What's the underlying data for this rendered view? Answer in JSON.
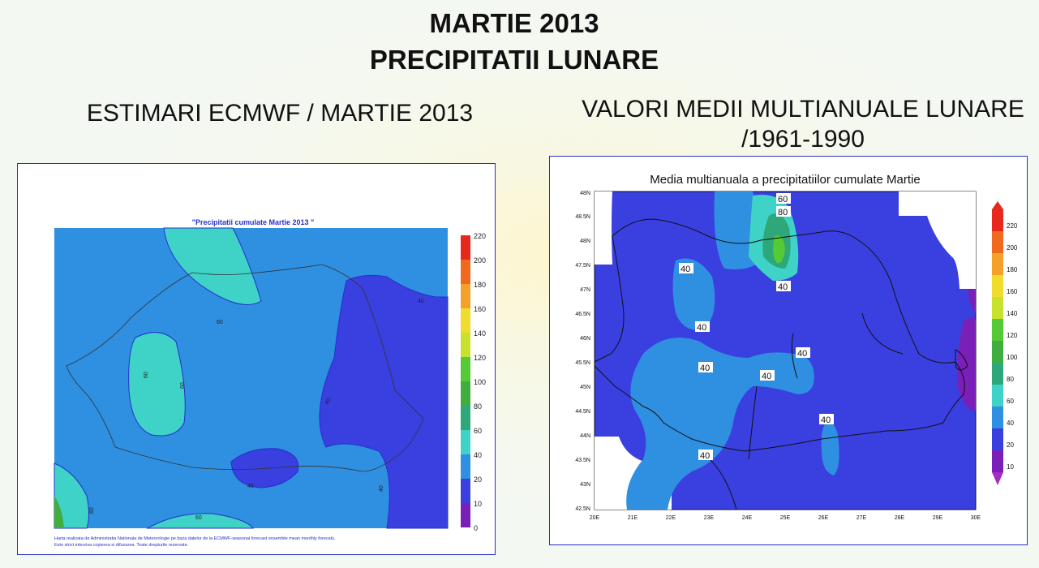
{
  "header": {
    "title_line1": "MARTIE 2013",
    "title_line2": "PRECIPITATII LUNARE"
  },
  "left": {
    "heading": "ESTIMARI ECMWF / MARTIE 2013",
    "map_title": "\"Precipitatii cumulate Martie 2013 \"",
    "footnote_line1": "Harta realizata de Administratia Nationala de Meteorologie pe baza datelor de la ECMWF-seasonal forecast ensemble mean monthly forecats.",
    "footnote_line2": "Este strict interzisa copierea si difuzarea. Toate drepturile rezervate.",
    "colorbar_labels": [
      "220",
      "200",
      "180",
      "160",
      "140",
      "120",
      "100",
      "80",
      "60",
      "40",
      "20",
      "10",
      "0"
    ],
    "contour_labels": [
      "60",
      "60",
      "60",
      "40",
      "40",
      "40",
      "40",
      "60",
      "60",
      "40"
    ]
  },
  "right": {
    "heading_line1": "VALORI MEDII MULTIANUALE LUNARE",
    "heading_line2": "/1961-1990",
    "map_title": "Media multianuala a precipitatiilor cumulate Martie",
    "lat_labels": [
      "48N",
      "48.5N",
      "48N",
      "47.5N",
      "47N",
      "46.5N",
      "46N",
      "45.5N",
      "45N",
      "44.5N",
      "44N",
      "43.5N",
      "43N",
      "42.5N"
    ],
    "lon_labels": [
      "20E",
      "21E",
      "22E",
      "23E",
      "24E",
      "25E",
      "26E",
      "27E",
      "28E",
      "29E",
      "30E"
    ],
    "colorbar_labels": [
      "220",
      "200",
      "180",
      "160",
      "140",
      "120",
      "100",
      "80",
      "60",
      "40",
      "20",
      "10"
    ],
    "contour_labels": [
      "60",
      "80",
      "40",
      "40",
      "40",
      "40",
      "40",
      "40",
      "40",
      "40"
    ]
  },
  "colors": {
    "panel_border": "#2630c8",
    "c_0_10": "#7a1fb8",
    "c_10_20": "#2b24b8",
    "c_20_40": "#3a3fe0",
    "c_40_60": "#2f8fe0",
    "c_60_80": "#3fd3c7",
    "c_80_100": "#2ea77a",
    "c_100_120": "#3fae3f",
    "c_120_140": "#55c936",
    "c_140_160": "#c8e12c",
    "c_160_180": "#f0dc2c",
    "c_180_200": "#f4a12a",
    "c_200_220": "#ef6a1f",
    "c_220": "#e8271d"
  }
}
